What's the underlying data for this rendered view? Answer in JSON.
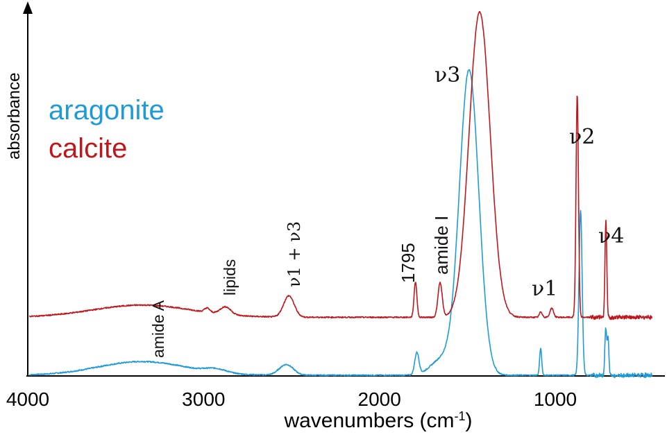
{
  "chart_data": {
    "type": "line",
    "xlabel": "wavenumbers (cm",
    "xlabel_sup": "-1",
    "xlabel_close": ")",
    "ylabel": "absorbance",
    "xlim": [
      4000,
      400
    ],
    "x_reversed": true,
    "x_ticks": [
      4000,
      3000,
      2000,
      1000
    ],
    "x_tick_labels": [
      "4000",
      "3000",
      "2000",
      "1000"
    ],
    "y_units": "relative (offset traces)",
    "grid": false,
    "legend_position": "left",
    "series": [
      {
        "name": "aragonite",
        "color": "#1e9bd7",
        "baseline": 0.0,
        "peaks": [
          {
            "x": 3350,
            "height": 0.045,
            "width": 250
          },
          {
            "x": 2930,
            "height": 0.012,
            "width": 60
          },
          {
            "x": 2530,
            "height": 0.035,
            "width": 40
          },
          {
            "x": 1787,
            "height": 0.072,
            "width": 12
          },
          {
            "x": 1650,
            "height": 0.05,
            "width": 60
          },
          {
            "x": 1490,
            "height": 1.0,
            "width": 55
          },
          {
            "x": 1083,
            "height": 0.088,
            "width": 6
          },
          {
            "x": 856,
            "height": 0.54,
            "width": 9
          },
          {
            "x": 713,
            "height": 0.15,
            "width": 5
          },
          {
            "x": 700,
            "height": 0.12,
            "width": 5
          }
        ]
      },
      {
        "name": "calcite",
        "color": "#c0161b",
        "baseline": 0.19,
        "peaks": [
          {
            "x": 3350,
            "height": 0.04,
            "width": 280
          },
          {
            "x": 2980,
            "height": 0.014,
            "width": 15
          },
          {
            "x": 2875,
            "height": 0.025,
            "width": 30
          },
          {
            "x": 2515,
            "height": 0.07,
            "width": 30
          },
          {
            "x": 1795,
            "height": 0.116,
            "width": 8
          },
          {
            "x": 1655,
            "height": 0.113,
            "width": 12
          },
          {
            "x": 1430,
            "height": 1.0,
            "width": 60
          },
          {
            "x": 1082,
            "height": 0.018,
            "width": 8
          },
          {
            "x": 1020,
            "height": 0.03,
            "width": 10
          },
          {
            "x": 875,
            "height": 0.73,
            "width": 7
          },
          {
            "x": 712,
            "height": 0.32,
            "width": 5
          }
        ]
      }
    ],
    "annotations": [
      {
        "text": "amide A",
        "x": 3400,
        "rotated": true
      },
      {
        "text": "lipids",
        "x": 2920,
        "rotated": true
      },
      {
        "text": "ν1 + ν3",
        "x": 2530,
        "rotated": true
      },
      {
        "text": "1795",
        "x": 1795,
        "rotated": true
      },
      {
        "text": "amide I",
        "x": 1660,
        "rotated": true
      },
      {
        "text": "ν3",
        "x": 1530,
        "rotated": false
      },
      {
        "text": "ν1",
        "x": 1090,
        "rotated": false
      },
      {
        "text": "ν2",
        "x": 880,
        "rotated": false
      },
      {
        "text": "ν4",
        "x": 712,
        "rotated": false
      }
    ]
  }
}
